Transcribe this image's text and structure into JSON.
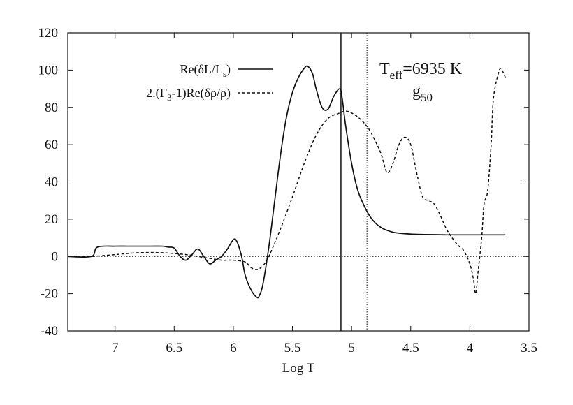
{
  "chart_data": {
    "type": "line",
    "title": "",
    "xlabel": "Log T",
    "ylabel": "",
    "xlim": [
      7.4,
      3.5
    ],
    "x_reversed": true,
    "ylim": [
      -40,
      120
    ],
    "x_ticks": [
      7,
      6.5,
      6,
      5.5,
      5,
      4.5,
      4,
      3.5
    ],
    "x_tick_labels": [
      "7",
      "6.5",
      "6",
      "5.5",
      "5",
      "4.5",
      "4",
      "3.5"
    ],
    "y_ticks": [
      -40,
      -20,
      0,
      20,
      40,
      60,
      80,
      100,
      120
    ],
    "y_tick_labels": [
      "-40",
      "-20",
      "0",
      "20",
      "40",
      "60",
      "80",
      "100",
      "120"
    ],
    "grid": false,
    "legend_position": "top-center",
    "series": [
      {
        "name": "Re(δL/Ls)",
        "name_main": "Re(δL/L",
        "name_sub": "s",
        "name_tail": ")",
        "style": "solid",
        "x": [
          7.4,
          7.2,
          7.15,
          7.0,
          6.9,
          6.8,
          6.7,
          6.6,
          6.55,
          6.5,
          6.45,
          6.4,
          6.35,
          6.3,
          6.25,
          6.2,
          6.15,
          6.1,
          6.05,
          6.0,
          5.97,
          5.93,
          5.9,
          5.85,
          5.8,
          5.78,
          5.75,
          5.7,
          5.65,
          5.6,
          5.55,
          5.5,
          5.45,
          5.4,
          5.37,
          5.33,
          5.3,
          5.25,
          5.2,
          5.15,
          5.1,
          5.08,
          5.05,
          5.0,
          4.95,
          4.9,
          4.85,
          4.8,
          4.75,
          4.7,
          4.65,
          4.6,
          4.5,
          4.4,
          4.3,
          4.2,
          4.1,
          4.0,
          3.9,
          3.8,
          3.7
        ],
        "y": [
          0,
          0,
          5,
          5.5,
          5.5,
          5.5,
          5.5,
          5.5,
          5,
          4.5,
          0,
          -2,
          1,
          4,
          0,
          -4,
          -2,
          0,
          4,
          9,
          8,
          0,
          -10,
          -18,
          -22,
          -21,
          -15,
          5,
          30,
          55,
          75,
          88,
          96,
          101,
          102,
          98,
          90,
          80,
          79,
          86,
          90,
          85,
          70,
          50,
          36,
          28,
          22,
          18,
          15.5,
          14,
          13,
          12.5,
          12,
          11.8,
          11.7,
          11.6,
          11.6,
          11.6,
          11.6,
          11.6,
          11.6
        ]
      },
      {
        "name": "2.(Γ3-1)Re(δρ/ρ)",
        "name_main": "2.(Γ",
        "name_sub": "3",
        "name_tail": "-1)Re(δρ/ρ)",
        "style": "dashed",
        "x": [
          7.4,
          7.2,
          7.0,
          6.8,
          6.6,
          6.4,
          6.3,
          6.2,
          6.1,
          6.0,
          5.9,
          5.85,
          5.8,
          5.75,
          5.7,
          5.6,
          5.5,
          5.4,
          5.3,
          5.2,
          5.1,
          5.05,
          5.0,
          4.95,
          4.9,
          4.85,
          4.8,
          4.75,
          4.7,
          4.65,
          4.6,
          4.55,
          4.5,
          4.45,
          4.4,
          4.35,
          4.3,
          4.25,
          4.2,
          4.15,
          4.1,
          4.05,
          4.0,
          3.97,
          3.95,
          3.93,
          3.9,
          3.88,
          3.85,
          3.82,
          3.8,
          3.75,
          3.72,
          3.7
        ],
        "y": [
          0,
          0,
          1,
          2,
          2,
          1,
          0,
          -1,
          -2,
          -2,
          -3,
          -6,
          -7,
          -5,
          0,
          15,
          32,
          50,
          65,
          74,
          77,
          78,
          77,
          75,
          72,
          68,
          62,
          55,
          45,
          50,
          60,
          64,
          60,
          45,
          32,
          30,
          28,
          22,
          15,
          10,
          6,
          3,
          -4,
          -12,
          -20,
          -8,
          10,
          28,
          35,
          60,
          85,
          100,
          99,
          96
        ]
      }
    ],
    "vertical_lines": [
      {
        "x": 5.09,
        "style": "solid"
      },
      {
        "x": 4.87,
        "style": "dotted"
      }
    ],
    "reference_lines": [
      {
        "y": 0,
        "style": "dotted"
      }
    ],
    "annotations": {
      "teff_main": "T",
      "teff_sub": "eff",
      "teff_value": "=6935 K",
      "g_main": "g",
      "g_sub": "50"
    }
  }
}
